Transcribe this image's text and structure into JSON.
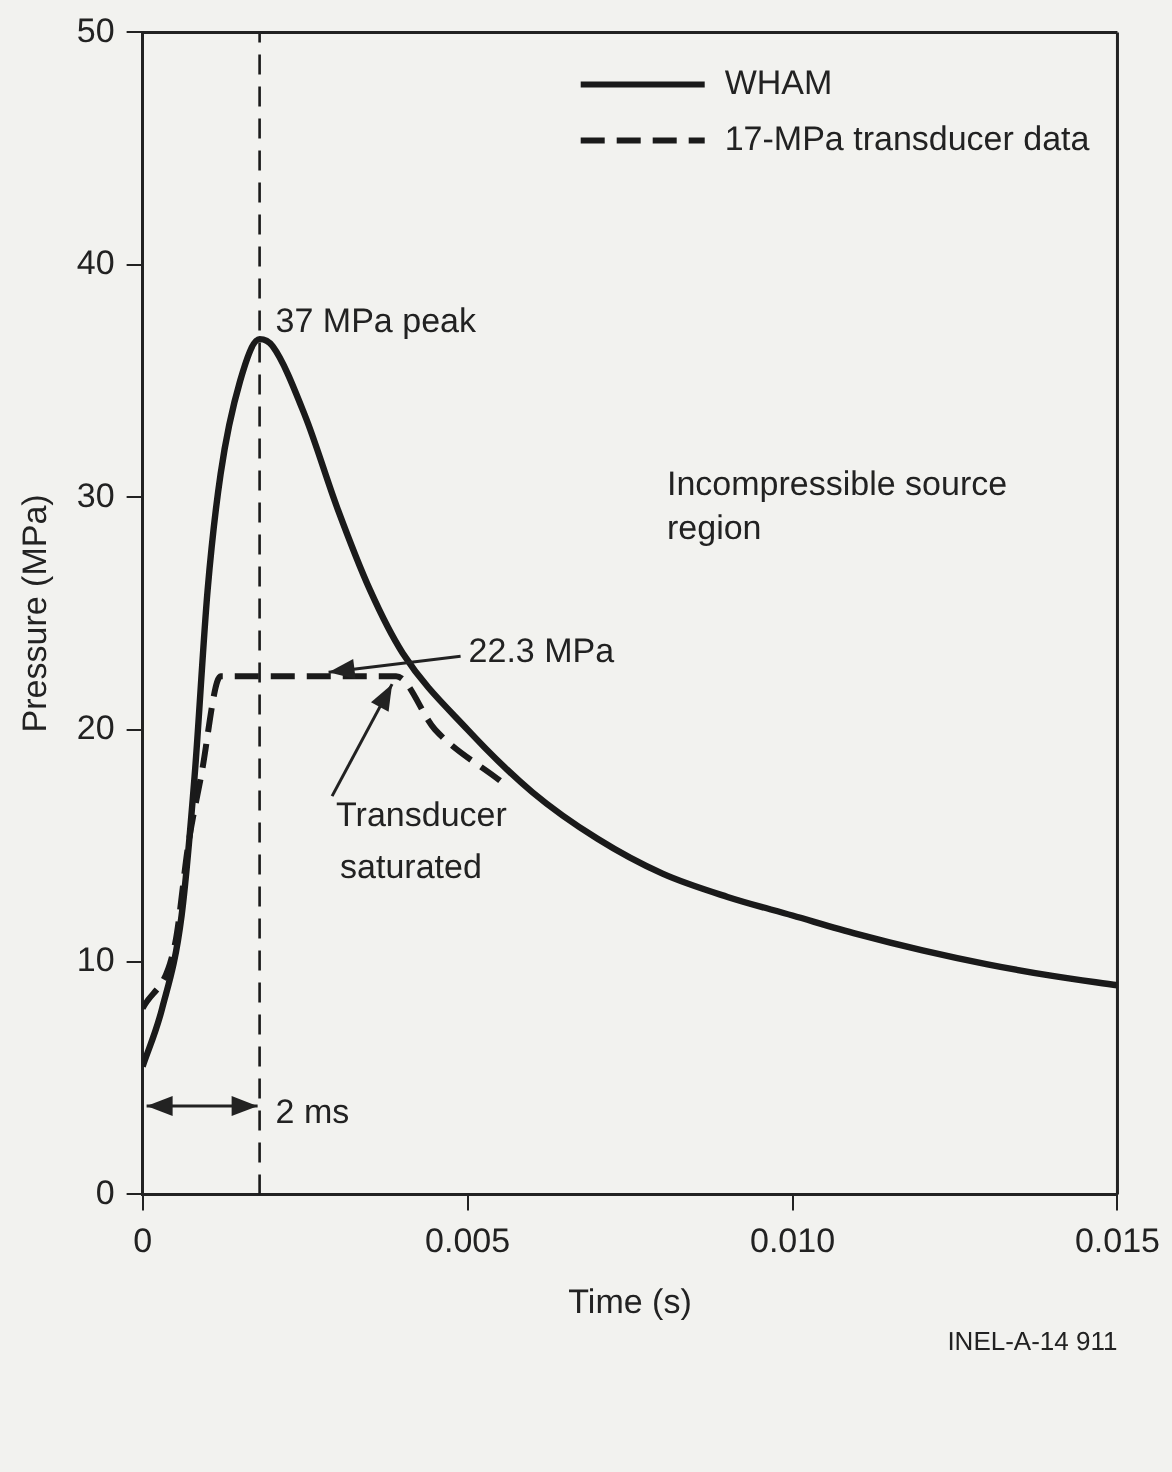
{
  "chart_data": {
    "type": "line",
    "xlabel": "Time (s)",
    "ylabel": "Pressure (MPa)",
    "xlim": [
      0,
      0.015
    ],
    "ylim": [
      0,
      50
    ],
    "xticks": [
      0,
      0.005,
      {
        "value": 0.01,
        "label": "0.010"
      },
      0.015
    ],
    "yticks": [
      0,
      10,
      20,
      30,
      40,
      50
    ],
    "grid": false,
    "legend": "top right",
    "marker": "none",
    "series": [
      {
        "name": "WHAM",
        "color": "#1a1a1a",
        "line_style": "solid",
        "x": [
          0,
          0.0003,
          0.0006,
          0.0008,
          0.001,
          0.0012,
          0.0015,
          0.0018,
          0.002,
          0.0025,
          0.003,
          0.0035,
          0.004,
          0.005,
          0.006,
          0.007,
          0.008,
          0.009,
          0.01,
          0.011,
          0.012,
          0.013,
          0.014,
          0.015
        ],
        "values": [
          5.5,
          8,
          12,
          18,
          26,
          31,
          35,
          36.8,
          36.5,
          33.5,
          29.5,
          26,
          23.3,
          20,
          17.3,
          15.3,
          13.8,
          12.8,
          12,
          11.2,
          10.5,
          9.9,
          9.4,
          9
        ]
      },
      {
        "name": "17-MPa transducer data",
        "color": "#1a1a1a",
        "line_style": "dashed",
        "x": [
          0,
          0.0005,
          0.0007,
          0.0009,
          0.0012,
          0.0018,
          0.0039,
          0.0045,
          0.0055
        ],
        "values": [
          8,
          10.8,
          15,
          18,
          22.3,
          22.3,
          22.3,
          20,
          17.8
        ]
      }
    ],
    "ref_lines": [
      {
        "axis": "x",
        "value": 0.0018,
        "line_style": "dashed",
        "color": "#1a1a1a"
      }
    ],
    "annotations": [
      {
        "text": "37 MPa peak",
        "x": 0.0018,
        "y": 37
      },
      {
        "text": "Incompressible source region"
      },
      {
        "text": "22.3 MPa",
        "x": 0.0028,
        "y": 22.3
      },
      {
        "text": "Transducer saturated",
        "x": 0.0039,
        "y": 22.3
      },
      {
        "text": "2 ms",
        "x": 0.0018,
        "y": 3.8
      },
      {
        "text": "INEL-A-14 911"
      }
    ]
  }
}
